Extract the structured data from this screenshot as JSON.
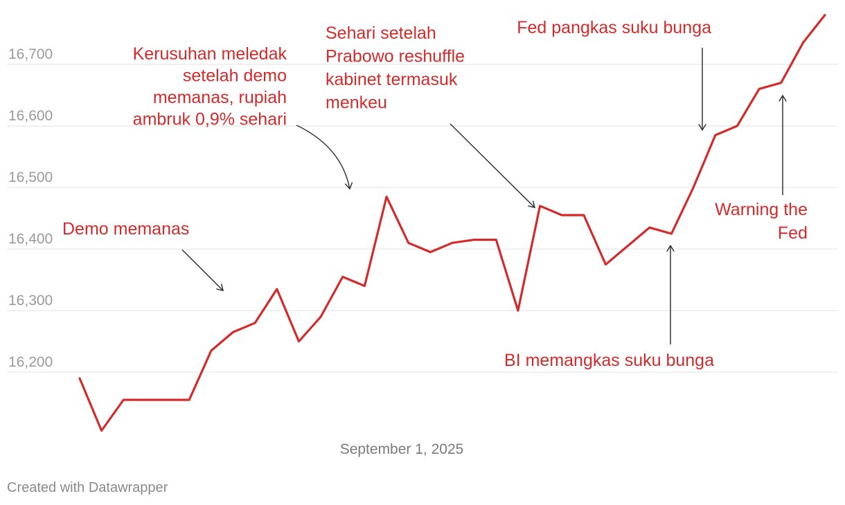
{
  "colors": {
    "line": "#d32b2b",
    "annotation": "#d32b2b",
    "grid": "#e2e2e2",
    "tick": "#9a9a9a",
    "arrow": "#333333"
  },
  "chart_data": {
    "type": "line",
    "title": "",
    "xlabel": "",
    "ylabel": "",
    "ylim": [
      16110,
      16780
    ],
    "y_ticks": [
      {
        "value": 16200,
        "label": "16,200"
      },
      {
        "value": 16300,
        "label": "16,300"
      },
      {
        "value": 16400,
        "label": "16,400"
      },
      {
        "value": 16500,
        "label": "16,500"
      },
      {
        "value": 16600,
        "label": "16,600"
      },
      {
        "value": 16700,
        "label": "16,700"
      }
    ],
    "grid": true,
    "x_tick_label": "September 1, 2025",
    "series": [
      {
        "values": [
          16190,
          16105,
          16155,
          16155,
          16155,
          16155,
          16235,
          16265,
          16280,
          16335,
          16250,
          16290,
          16355,
          16340,
          16485,
          16410,
          16395,
          16410,
          16415,
          16415,
          16300,
          16470,
          16455,
          16455,
          16375,
          16405,
          16435,
          16425,
          16500,
          16585,
          16600,
          16660,
          16670,
          16735,
          16780
        ]
      }
    ],
    "annotations": [
      {
        "lines": [
          "Demo memanas"
        ],
        "point_index": 9
      },
      {
        "lines": [
          "Kerusuhan meledak",
          "setelah demo",
          "memanas, rupiah",
          "ambruk 0,9% sehari"
        ],
        "point_index": 14
      },
      {
        "lines": [
          "Sehari setelah",
          "Prabowo reshuffle",
          "kabinet termasuk",
          "menkeu"
        ],
        "point_index": 21
      },
      {
        "lines": [
          "Fed pangkas suku bunga"
        ],
        "point_index": 29
      },
      {
        "lines": [
          "BI memangkas suku bunga"
        ],
        "point_index": 27
      },
      {
        "lines": [
          "Warning the",
          "Fed"
        ],
        "point_index": 32
      }
    ]
  },
  "footer": {
    "credit": "Created with Datawrapper"
  }
}
